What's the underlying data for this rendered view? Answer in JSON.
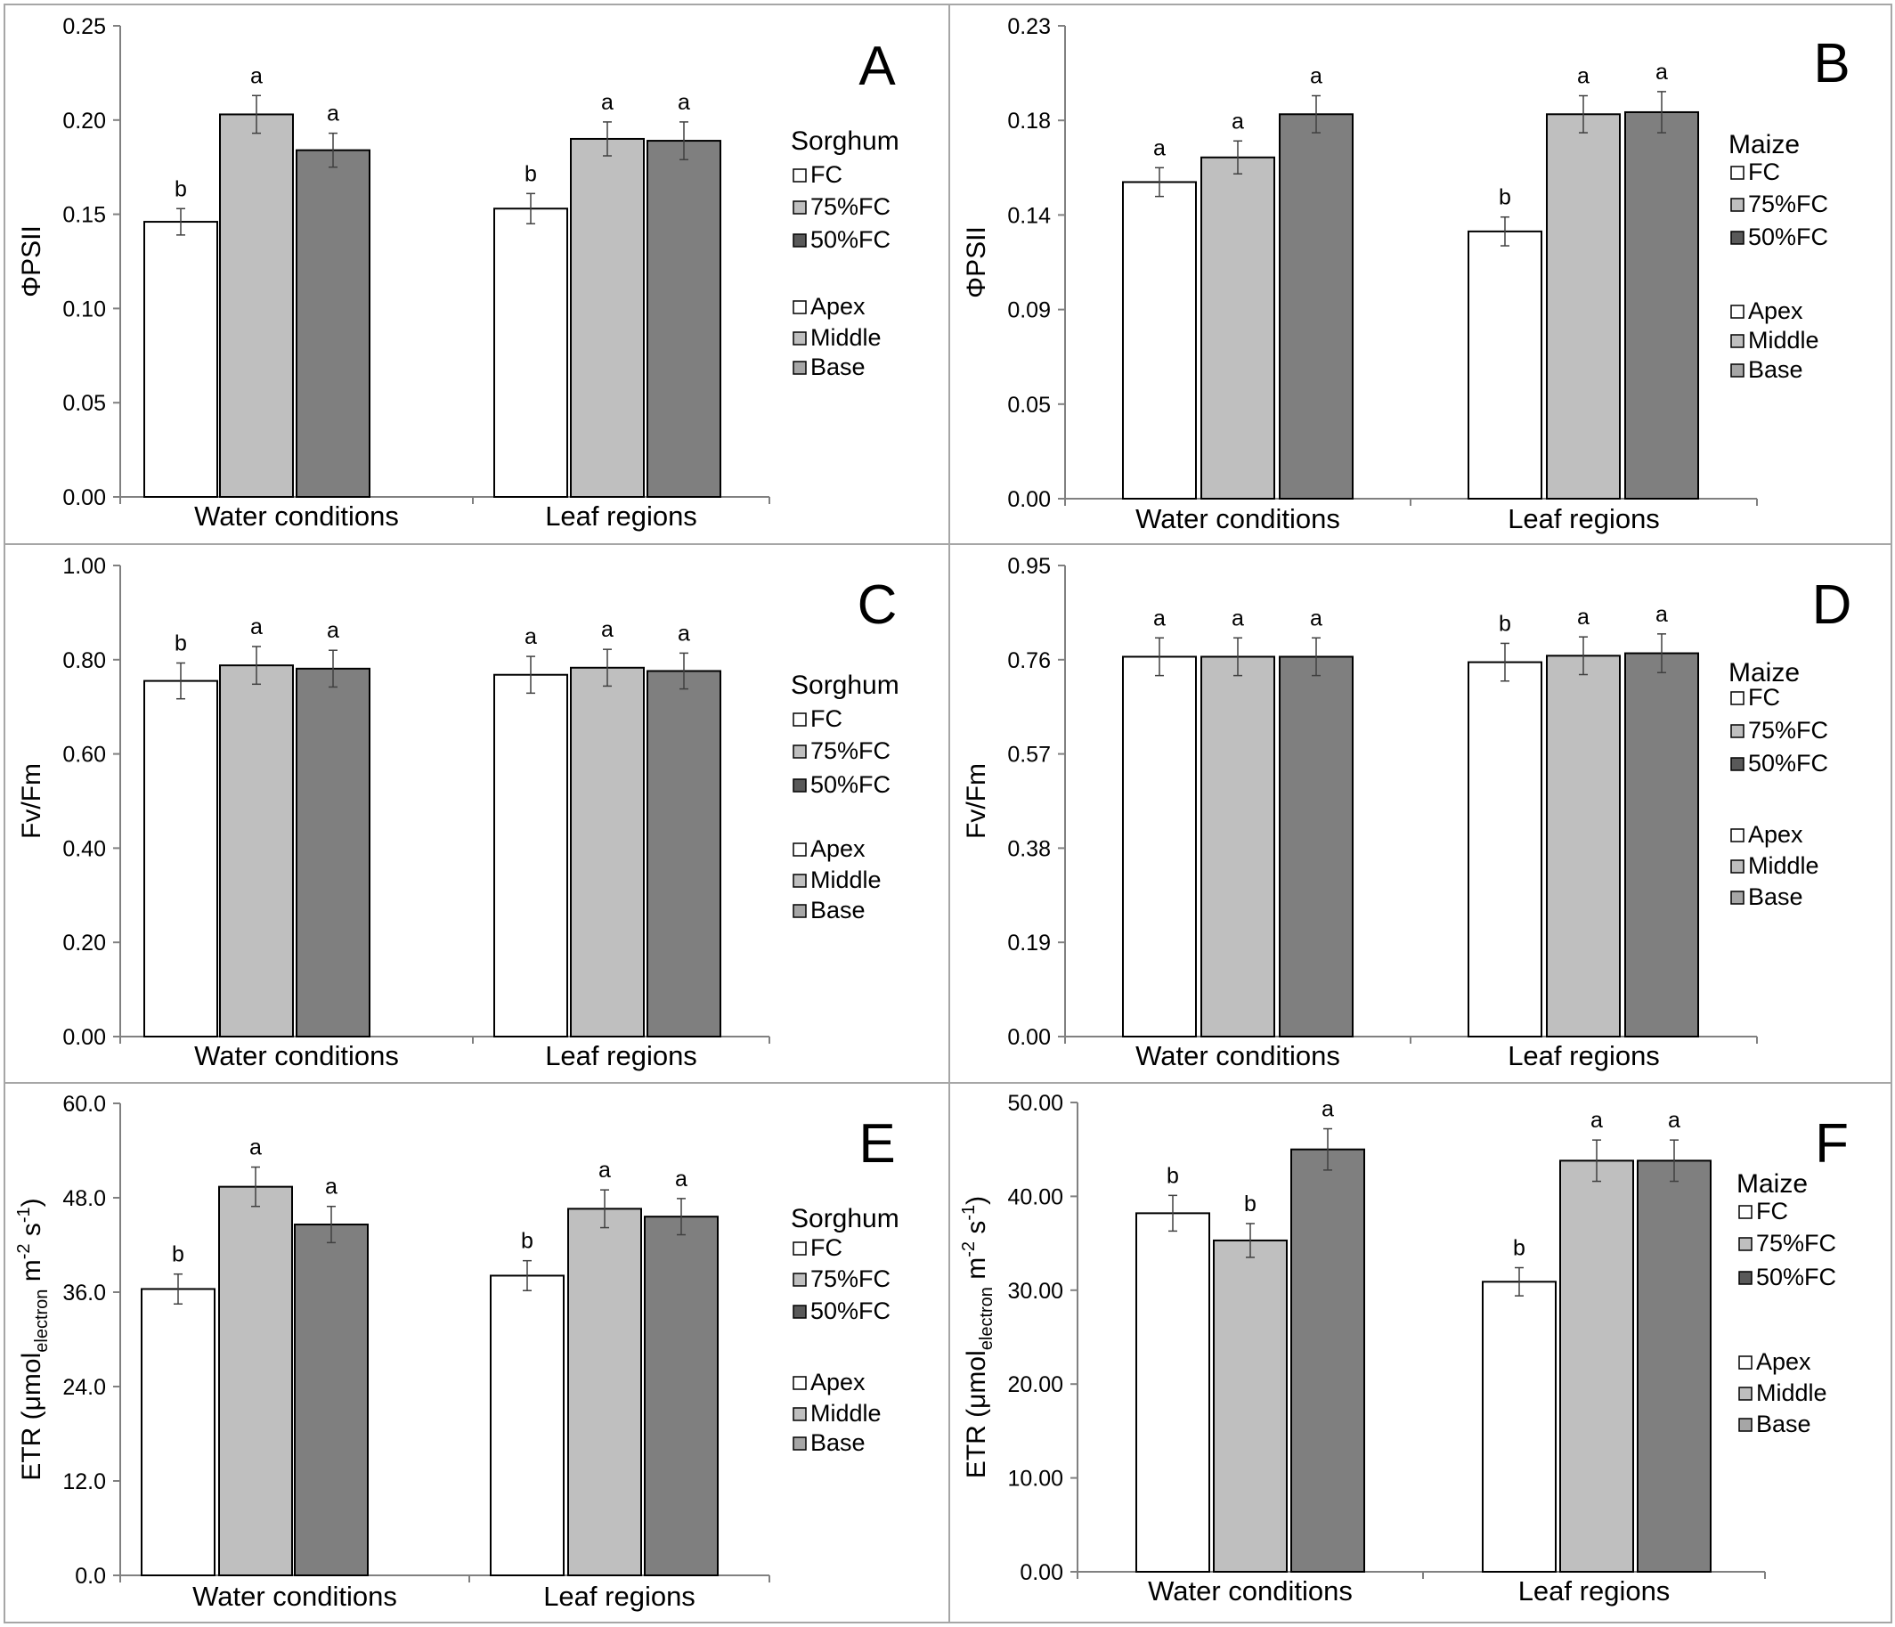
{
  "chart_data": [
    {
      "id": "A",
      "type": "bar",
      "panel_letter": "A",
      "ylabel": "ΦPSII",
      "ylim": [
        0,
        0.25
      ],
      "yticks": [
        "0.00",
        "0.05",
        "0.10",
        "0.15",
        "0.20",
        "0.25"
      ],
      "categories": [
        "Water conditions",
        "Leaf regions"
      ],
      "bars": [
        {
          "group": 0,
          "value": 0.146,
          "error": 0.007,
          "letter": "b"
        },
        {
          "group": 0,
          "value": 0.203,
          "error": 0.01,
          "letter": "a"
        },
        {
          "group": 0,
          "value": 0.184,
          "error": 0.009,
          "letter": "a"
        },
        {
          "group": 1,
          "value": 0.153,
          "error": 0.008,
          "letter": "b"
        },
        {
          "group": 1,
          "value": 0.19,
          "error": 0.009,
          "letter": "a"
        },
        {
          "group": 1,
          "value": 0.189,
          "error": 0.01,
          "letter": "a"
        }
      ],
      "legend_title": "Sorghum",
      "legend_water": [
        "FC",
        "75%FC",
        "50%FC"
      ],
      "legend_leaf": [
        "Apex",
        "Middle",
        "Base"
      ]
    },
    {
      "id": "B",
      "type": "bar",
      "panel_letter": "B",
      "ylabel": "ΦPSII",
      "ylim": [
        0,
        0.23
      ],
      "yticks": [
        "0.00",
        "0.05",
        "0.09",
        "0.14",
        "0.18",
        "0.23"
      ],
      "categories": [
        "Water conditions",
        "Leaf regions"
      ],
      "bars": [
        {
          "group": 0,
          "value": 0.154,
          "error": 0.007,
          "letter": "a"
        },
        {
          "group": 0,
          "value": 0.166,
          "error": 0.008,
          "letter": "a"
        },
        {
          "group": 0,
          "value": 0.187,
          "error": 0.009,
          "letter": "a"
        },
        {
          "group": 1,
          "value": 0.13,
          "error": 0.007,
          "letter": "b"
        },
        {
          "group": 1,
          "value": 0.187,
          "error": 0.009,
          "letter": "a"
        },
        {
          "group": 1,
          "value": 0.188,
          "error": 0.01,
          "letter": "a"
        }
      ],
      "legend_title": "Maize",
      "legend_water": [
        "FC",
        "75%FC",
        "50%FC"
      ],
      "legend_leaf": [
        "Apex",
        "Middle",
        "Base"
      ]
    },
    {
      "id": "C",
      "type": "bar",
      "panel_letter": "C",
      "ylabel": "Fv/Fm",
      "ylim": [
        0,
        1.0
      ],
      "yticks": [
        "0.00",
        "0.20",
        "0.40",
        "0.60",
        "0.80",
        "1.00"
      ],
      "categories": [
        "Water conditions",
        "Leaf regions"
      ],
      "bars": [
        {
          "group": 0,
          "value": 0.755,
          "error": 0.038,
          "letter": "b"
        },
        {
          "group": 0,
          "value": 0.788,
          "error": 0.04,
          "letter": "a"
        },
        {
          "group": 0,
          "value": 0.781,
          "error": 0.039,
          "letter": "a"
        },
        {
          "group": 1,
          "value": 0.768,
          "error": 0.039,
          "letter": "a"
        },
        {
          "group": 1,
          "value": 0.783,
          "error": 0.039,
          "letter": "a"
        },
        {
          "group": 1,
          "value": 0.776,
          "error": 0.038,
          "letter": "a"
        }
      ],
      "legend_title": "Sorghum",
      "legend_water": [
        "FC",
        "75%FC",
        "50%FC"
      ],
      "legend_leaf": [
        "Apex",
        "Middle",
        "Base"
      ]
    },
    {
      "id": "D",
      "type": "bar",
      "panel_letter": "D",
      "ylabel": "Fv/Fm",
      "ylim": [
        0,
        0.95
      ],
      "yticks": [
        "0.00",
        "0.19",
        "0.38",
        "0.57",
        "0.76",
        "0.95"
      ],
      "categories": [
        "Water conditions",
        "Leaf regions"
      ],
      "bars": [
        {
          "group": 0,
          "value": 0.766,
          "error": 0.038,
          "letter": "a"
        },
        {
          "group": 0,
          "value": 0.766,
          "error": 0.038,
          "letter": "a"
        },
        {
          "group": 0,
          "value": 0.766,
          "error": 0.038,
          "letter": "a"
        },
        {
          "group": 1,
          "value": 0.755,
          "error": 0.038,
          "letter": "b"
        },
        {
          "group": 1,
          "value": 0.768,
          "error": 0.038,
          "letter": "a"
        },
        {
          "group": 1,
          "value": 0.773,
          "error": 0.039,
          "letter": "a"
        }
      ],
      "legend_title": "Maize",
      "legend_water": [
        "FC",
        "75%FC",
        "50%FC"
      ],
      "legend_leaf": [
        "Apex",
        "Middle",
        "Base"
      ]
    },
    {
      "id": "E",
      "type": "bar",
      "panel_letter": "E",
      "ylabel_main": "ETR (μmol",
      "ylabel_sub": "electron",
      "ylabel_unit": " m",
      "ylabel_exp1": "-2",
      "ylabel_mid": " s",
      "ylabel_exp2": "-1",
      "ylabel_close": ")",
      "ylim": [
        0,
        60
      ],
      "yticks": [
        "0.0",
        "12.0",
        "24.0",
        "36.0",
        "48.0",
        "60.0"
      ],
      "categories": [
        "Water conditions",
        "Leaf regions"
      ],
      "bars": [
        {
          "group": 0,
          "value": 36.4,
          "error": 1.9,
          "letter": "b"
        },
        {
          "group": 0,
          "value": 49.4,
          "error": 2.5,
          "letter": "a"
        },
        {
          "group": 0,
          "value": 44.6,
          "error": 2.3,
          "letter": "a"
        },
        {
          "group": 1,
          "value": 38.1,
          "error": 1.9,
          "letter": "b"
        },
        {
          "group": 1,
          "value": 46.6,
          "error": 2.4,
          "letter": "a"
        },
        {
          "group": 1,
          "value": 45.6,
          "error": 2.3,
          "letter": "a"
        }
      ],
      "legend_title": "Sorghum",
      "legend_water": [
        "FC",
        "75%FC",
        "50%FC"
      ],
      "legend_leaf": [
        "Apex",
        "Middle",
        "Base"
      ]
    },
    {
      "id": "F",
      "type": "bar",
      "panel_letter": "F",
      "ylabel_main": "ETR (μmol",
      "ylabel_sub": "electron",
      "ylabel_unit": " m",
      "ylabel_exp1": "-2",
      "ylabel_mid": " s",
      "ylabel_exp2": "-1",
      "ylabel_close": ")",
      "ylim": [
        0,
        50
      ],
      "yticks": [
        "0.00",
        "10.00",
        "20.00",
        "30.00",
        "40.00",
        "50.00"
      ],
      "categories": [
        "Water conditions",
        "Leaf regions"
      ],
      "bars": [
        {
          "group": 0,
          "value": 38.2,
          "error": 1.9,
          "letter": "b"
        },
        {
          "group": 0,
          "value": 35.3,
          "error": 1.8,
          "letter": "b"
        },
        {
          "group": 0,
          "value": 45.0,
          "error": 2.2,
          "letter": "a"
        },
        {
          "group": 1,
          "value": 30.9,
          "error": 1.5,
          "letter": "b"
        },
        {
          "group": 1,
          "value": 43.8,
          "error": 2.2,
          "letter": "a"
        },
        {
          "group": 1,
          "value": 43.8,
          "error": 2.2,
          "letter": "a"
        }
      ],
      "legend_title": "Maize",
      "legend_water": [
        "FC",
        "75%FC",
        "50%FC"
      ],
      "legend_leaf": [
        "Apex",
        "Middle",
        "Base"
      ]
    }
  ],
  "colors": {
    "fc": "#ffffff",
    "fc75": "#bfbfbf",
    "fc50": "#7f7f7f",
    "apex": "#ffffff",
    "middle": "#bfbfbf",
    "base": "#a6a6a6",
    "legend_fc50": "#595959",
    "axis": "#808080"
  }
}
